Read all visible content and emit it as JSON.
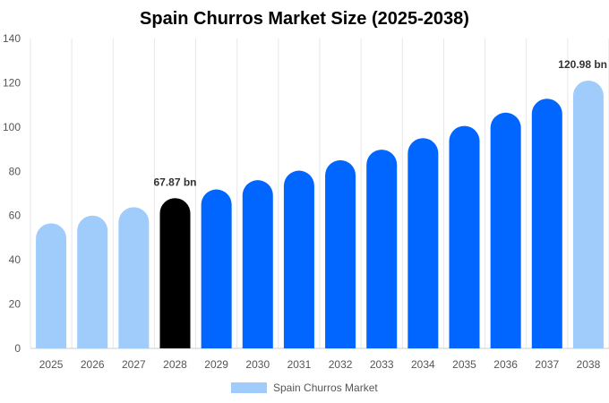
{
  "chart_data": {
    "type": "bar",
    "title": "Spain Churros Market Size (2025-2038)",
    "xlabel": "",
    "ylabel": "",
    "categories": [
      "2025",
      "2026",
      "2027",
      "2028",
      "2029",
      "2030",
      "2031",
      "2032",
      "2033",
      "2034",
      "2035",
      "2036",
      "2037",
      "2038"
    ],
    "series": [
      {
        "name": "Spain Churros Market",
        "values": [
          56.5,
          60,
          63.8,
          67.87,
          71.8,
          76,
          80.3,
          85,
          89.8,
          95,
          100.5,
          106.5,
          112.8,
          120.98
        ]
      }
    ],
    "ylim": [
      0,
      140
    ],
    "yticks": [
      0,
      20,
      40,
      60,
      80,
      100,
      120,
      140
    ],
    "data_labels": [
      {
        "category": "2028",
        "text": "67.87 bn"
      },
      {
        "category": "2038",
        "text": "120.98 bn"
      }
    ],
    "bar_colors": [
      "#a0ccfc",
      "#a0ccfc",
      "#a0ccfc",
      "#000000",
      "#0066ff",
      "#0066ff",
      "#0066ff",
      "#0066ff",
      "#0066ff",
      "#0066ff",
      "#0066ff",
      "#0066ff",
      "#0066ff",
      "#a0ccfc"
    ],
    "legend": {
      "position": "bottom",
      "label": "Spain Churros Market",
      "color": "#a0ccfc"
    },
    "grid": {
      "vertical": true,
      "horizontal": false
    }
  }
}
